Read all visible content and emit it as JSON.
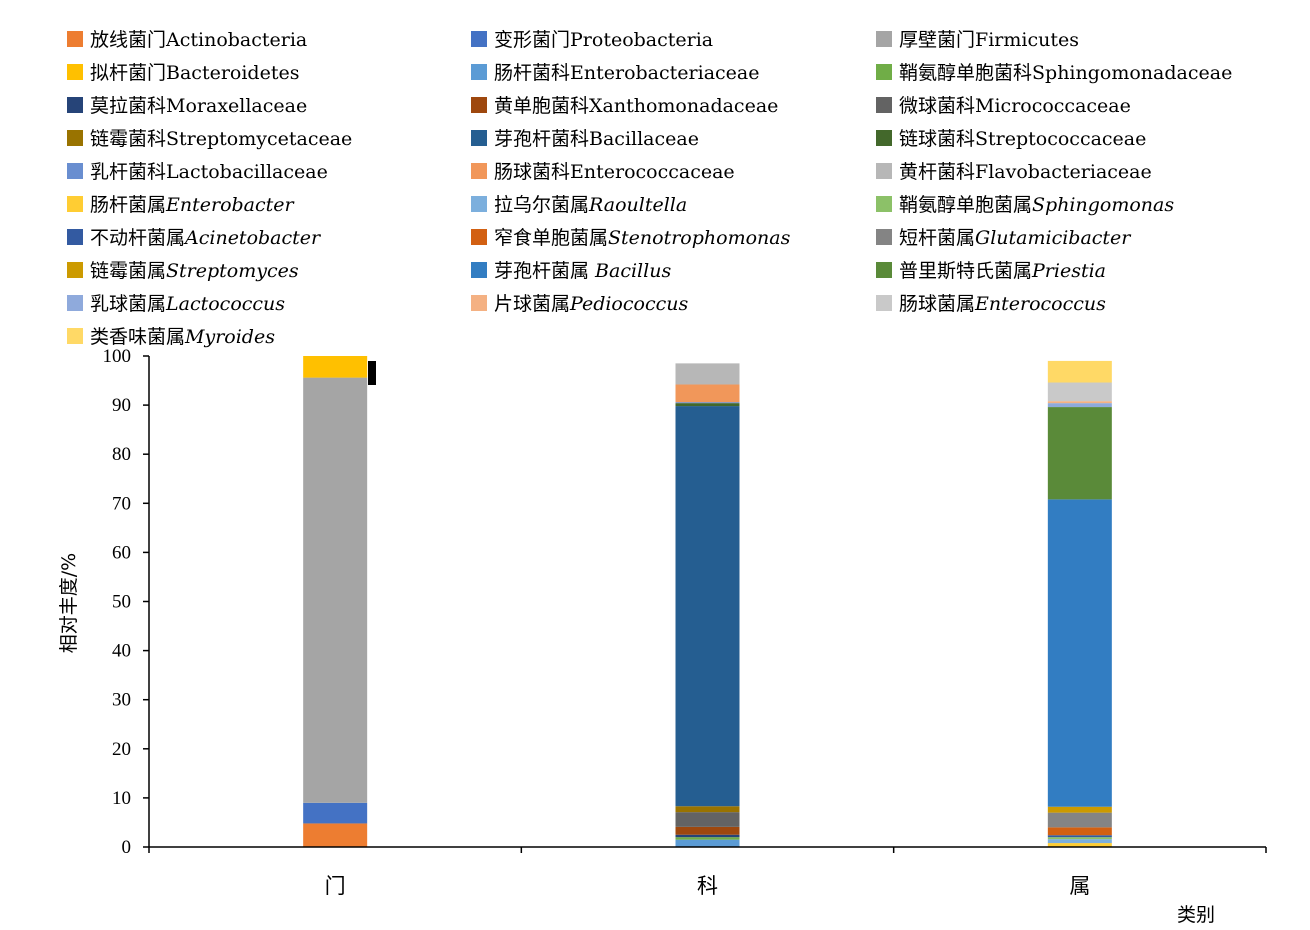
{
  "chart_data": {
    "type": "bar",
    "stacked": true,
    "title": "",
    "xlabel": "类别",
    "ylabel": "相对丰度/%",
    "ylim": [
      0,
      100
    ],
    "yticks": [
      0,
      10,
      20,
      30,
      40,
      50,
      60,
      70,
      80,
      90,
      100
    ],
    "categories": [
      "门",
      "科",
      "属"
    ],
    "legend_placement": "top",
    "series": [
      {
        "name": "放线菌门Actinobacteria",
        "prefix": "放线菌门",
        "latin": "Actinobacteria",
        "italic": false,
        "color": "#ED7D31",
        "values": [
          4.8,
          0,
          0
        ]
      },
      {
        "name": "变形菌门Proteobacteria",
        "prefix": "变形菌门",
        "latin": "Proteobacteria",
        "italic": false,
        "color": "#4472C4",
        "values": [
          4.2,
          0,
          0
        ]
      },
      {
        "name": "厚壁菌门Firmicutes",
        "prefix": "厚壁菌门",
        "latin": "Firmicutes",
        "italic": false,
        "color": "#A5A5A5",
        "values": [
          86.6,
          0,
          0
        ]
      },
      {
        "name": "拟杆菌门Bacteroidetes",
        "prefix": "拟杆菌门",
        "latin": "Bacteroidetes",
        "italic": false,
        "color": "#FFC000",
        "values": [
          4.4,
          0,
          0
        ]
      },
      {
        "name": "肠杆菌科Enterobacteriaceae",
        "prefix": "肠杆菌科",
        "latin": "Enterobacteriaceae",
        "italic": false,
        "color": "#5B9BD5",
        "values": [
          0,
          1.5,
          0
        ]
      },
      {
        "name": "鞘氨醇单胞菌科Sphingomonadaceae",
        "prefix": "鞘氨醇单胞菌科",
        "latin": "Sphingomonadaceae",
        "italic": false,
        "color": "#70AD47",
        "values": [
          0,
          0.5,
          0
        ]
      },
      {
        "name": "莫拉菌科Moraxellaceae",
        "prefix": "莫拉菌科",
        "latin": "Moraxellaceae",
        "italic": false,
        "color": "#264478",
        "values": [
          0,
          0.5,
          0
        ]
      },
      {
        "name": "黄单胞菌科Xanthomonadaceae",
        "prefix": "黄单胞菌科",
        "latin": "Xanthomonadaceae",
        "italic": false,
        "color": "#9E480E",
        "values": [
          0,
          1.6,
          0
        ]
      },
      {
        "name": "微球菌科Micrococcaceae",
        "prefix": "微球菌科",
        "latin": "Micrococcaceae",
        "italic": false,
        "color": "#636363",
        "values": [
          0,
          3.0,
          0
        ]
      },
      {
        "name": "链霉菌科Streptomycetaceae",
        "prefix": "链霉菌科",
        "latin": "Streptomycetaceae",
        "italic": false,
        "color": "#997300",
        "values": [
          0,
          1.2,
          0
        ]
      },
      {
        "name": "芽孢杆菌科Bacillaceae",
        "prefix": "芽孢杆菌科",
        "latin": "Bacillaceae",
        "italic": false,
        "color": "#255E91",
        "values": [
          0,
          81.5,
          0
        ]
      },
      {
        "name": "链球菌科Streptococcaceae",
        "prefix": "链球菌科",
        "latin": "Streptococcaceae",
        "italic": false,
        "color": "#43682B",
        "values": [
          0,
          0.6,
          0
        ]
      },
      {
        "name": "乳杆菌科Lactobacillaceae",
        "prefix": "乳杆菌科",
        "latin": "Lactobacillaceae",
        "italic": false,
        "color": "#698ED0",
        "values": [
          0,
          0.2,
          0
        ]
      },
      {
        "name": "肠球菌科Enterococcaceae",
        "prefix": "肠球菌科",
        "latin": "Enterococcaceae",
        "italic": false,
        "color": "#F1975A",
        "values": [
          0,
          3.6,
          0
        ]
      },
      {
        "name": "黄杆菌科Flavobacteriaceae",
        "prefix": "黄杆菌科",
        "latin": "Flavobacteriaceae",
        "italic": false,
        "color": "#B7B7B7",
        "values": [
          0,
          4.3,
          0
        ]
      },
      {
        "name": "肠杆菌属Enterobacter",
        "prefix": "肠杆菌属",
        "latin": "Enterobacter",
        "italic": true,
        "color": "#FFCD33",
        "values": [
          0,
          0,
          0.8
        ]
      },
      {
        "name": "拉乌尔菌属Raoultella",
        "prefix": "拉乌尔菌属",
        "latin": "Raoultella",
        "italic": true,
        "color": "#7CAFDD",
        "values": [
          0,
          0,
          0.8
        ]
      },
      {
        "name": "鞘氨醇单胞菌属Sphingomonas",
        "prefix": "鞘氨醇单胞菌属",
        "latin": "Sphingomonas",
        "italic": true,
        "color": "#8CC168",
        "values": [
          0,
          0,
          0.4
        ]
      },
      {
        "name": "不动杆菌属Acinetobacter",
        "prefix": "不动杆菌属",
        "latin": "Acinetobacter",
        "italic": true,
        "color": "#335AA1",
        "values": [
          0,
          0,
          0.4
        ]
      },
      {
        "name": "窄食单胞菌属Stenotrophomonas",
        "prefix": "窄食单胞菌属",
        "latin": "Stenotrophomonas",
        "italic": true,
        "color": "#D26012",
        "values": [
          0,
          0,
          1.6
        ]
      },
      {
        "name": "短杆菌属Glutamicibacter",
        "prefix": "短杆菌属",
        "latin": "Glutamicibacter",
        "italic": true,
        "color": "#848484",
        "values": [
          0,
          0,
          3.0
        ]
      },
      {
        "name": "链霉菌属Streptomyces",
        "prefix": "链霉菌属",
        "latin": "Streptomyces",
        "italic": true,
        "color": "#CC9A00",
        "values": [
          0,
          0,
          1.2
        ]
      },
      {
        "name": "芽孢杆菌属 Bacillus",
        "prefix": "芽孢杆菌属 ",
        "latin": "Bacillus",
        "italic": true,
        "color": "#327DC2",
        "values": [
          0,
          0,
          62.6
        ]
      },
      {
        "name": "普里斯特氏菌属Priestia",
        "prefix": "普里斯特氏菌属",
        "latin": "Priestia",
        "italic": true,
        "color": "#5A8A39",
        "values": [
          0,
          0,
          18.8
        ]
      },
      {
        "name": "乳球菌属Lactococcus",
        "prefix": "乳球菌属",
        "latin": "Lactococcus",
        "italic": true,
        "color": "#8FAADC",
        "values": [
          0,
          0,
          0.8
        ]
      },
      {
        "name": "片球菌属Pediococcus",
        "prefix": "片球菌属",
        "latin": "Pediococcus",
        "italic": true,
        "color": "#F4B183",
        "values": [
          0,
          0,
          0.4
        ]
      },
      {
        "name": "肠球菌属Enterococcus",
        "prefix": "肠球菌属",
        "latin": "Enterococcus",
        "italic": true,
        "color": "#C9C9C9",
        "values": [
          0,
          0,
          3.8
        ]
      },
      {
        "name": "类香味菌属Myroides",
        "prefix": "类香味菌属",
        "latin": "Myroides",
        "italic": true,
        "color": "#FFD966",
        "values": [
          0,
          0,
          4.4
        ]
      }
    ]
  }
}
